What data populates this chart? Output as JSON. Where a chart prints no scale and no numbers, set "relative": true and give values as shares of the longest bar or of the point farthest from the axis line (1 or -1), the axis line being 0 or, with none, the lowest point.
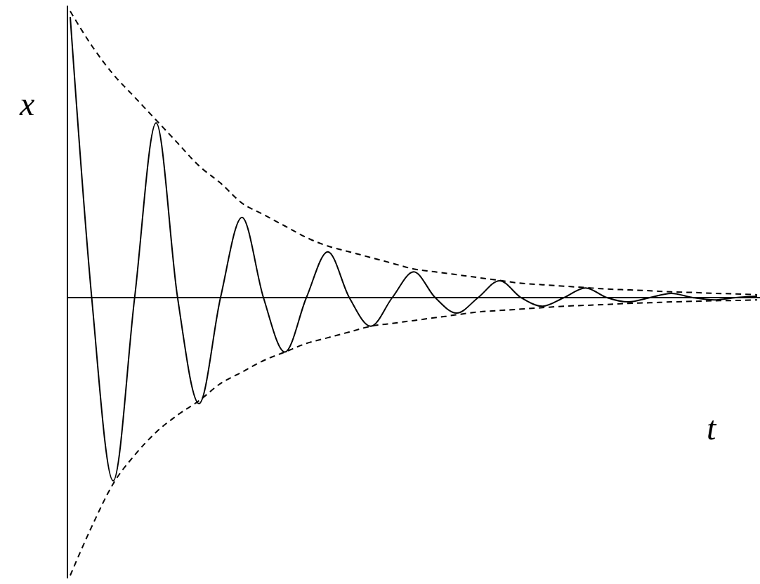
{
  "chart_data": {
    "type": "line",
    "relative": true,
    "xlabel": "t",
    "ylabel": "x",
    "categories": [
      null,
      null,
      null,
      null,
      null,
      null,
      null,
      null,
      null,
      null,
      null,
      null,
      null,
      null,
      null,
      null,
      null,
      null,
      null,
      null,
      null,
      null,
      null,
      null,
      null,
      null,
      null,
      null,
      null,
      null,
      null,
      null,
      null
    ],
    "series": [
      {
        "color": "#000000",
        "line_style": "solid",
        "values": [
          0.98,
          0,
          -0.64,
          0,
          0.61,
          0,
          -0.37,
          0,
          0.28,
          0,
          -0.19,
          0,
          0.16,
          0,
          -0.1,
          0,
          0.09,
          0,
          -0.054,
          0,
          0.059,
          0,
          -0.03,
          0,
          0.034,
          0,
          -0.015,
          0,
          0.015,
          0,
          -0.008,
          0,
          0.005
        ]
      },
      {
        "color": "#000000",
        "line_style": "dashed",
        "values": [
          1,
          0.88,
          0.78,
          0.7,
          0.62,
          0.54,
          0.46,
          0.4,
          0.33,
          0.29,
          0.25,
          0.21,
          0.18,
          0.16,
          0.14,
          0.12,
          0.1,
          0.09,
          0.08,
          0.07,
          0.06,
          0.05,
          0.045,
          0.04,
          0.035,
          0.03,
          0.027,
          0.024,
          0.02,
          0.018,
          0.015,
          0.013,
          0.01
        ]
      },
      {
        "color": "#000000",
        "line_style": "dashed",
        "values": [
          -0.97,
          -0.8,
          -0.65,
          -0.55,
          -0.47,
          -0.41,
          -0.36,
          -0.3,
          -0.26,
          -0.22,
          -0.19,
          -0.16,
          -0.14,
          -0.12,
          -0.1,
          -0.09,
          -0.08,
          -0.07,
          -0.06,
          -0.05,
          -0.045,
          -0.04,
          -0.035,
          -0.03,
          -0.027,
          -0.024,
          -0.02,
          -0.018,
          -0.015,
          -0.013,
          -0.011,
          -0.01,
          -0.008
        ]
      }
    ]
  }
}
